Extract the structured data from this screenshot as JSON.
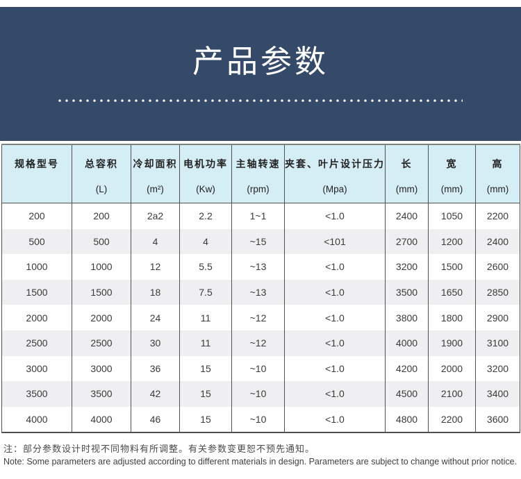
{
  "banner": {
    "title": "产品参数",
    "bg_color": "#354A68",
    "text_color": "#ffffff"
  },
  "table": {
    "header_bg": "#D5EEF6",
    "row_alt_bg": "#EFEFF1",
    "columns": [
      {
        "label": "规格型号",
        "unit": ""
      },
      {
        "label": "总容积",
        "unit": "(L)"
      },
      {
        "label": "冷却面积",
        "unit": "(m²)"
      },
      {
        "label": "电机功率",
        "unit": "(Kw)"
      },
      {
        "label": "主轴转速",
        "unit": "(rpm)"
      },
      {
        "label": "夹套、叶片设计压力",
        "unit": "(Mpa)"
      },
      {
        "label": "长",
        "unit": "(mm)"
      },
      {
        "label": "宽",
        "unit": "(mm)"
      },
      {
        "label": "高",
        "unit": "(mm)"
      }
    ],
    "rows": [
      [
        "200",
        "200",
        "2a2",
        "2.2",
        "1~1",
        "<1.0",
        "2400",
        "1050",
        "2200"
      ],
      [
        "500",
        "500",
        "4",
        "4",
        "~15",
        "<101",
        "2700",
        "1200",
        "2400"
      ],
      [
        "1000",
        "1000",
        "12",
        "5.5",
        "~13",
        "<1.0",
        "3200",
        "1500",
        "2600"
      ],
      [
        "1500",
        "1500",
        "18",
        "7.5",
        "~13",
        "<1.0",
        "3500",
        "1650",
        "2850"
      ],
      [
        "2000",
        "2000",
        "24",
        "11",
        "~12",
        "<1.0",
        "3800",
        "1800",
        "2900"
      ],
      [
        "2500",
        "2500",
        "30",
        "11",
        "~12",
        "<1.0",
        "4000",
        "1900",
        "3100"
      ],
      [
        "3000",
        "3000",
        "36",
        "15",
        "~10",
        "<1.0",
        "4200",
        "2000",
        "3200"
      ],
      [
        "3500",
        "3500",
        "42",
        "15",
        "~10",
        "<1.0",
        "4500",
        "2100",
        "3400"
      ],
      [
        "4000",
        "4000",
        "46",
        "15",
        "~10",
        "<1.0",
        "4800",
        "2200",
        "3600"
      ]
    ]
  },
  "notes": {
    "zh": "注：部分参数设计时视不同物料有所调整。有关参数变更恕不预先通知。",
    "en": "Note: Some parameters are adjusted according to different materials in design. Parameters are subject to change without prior notice."
  }
}
